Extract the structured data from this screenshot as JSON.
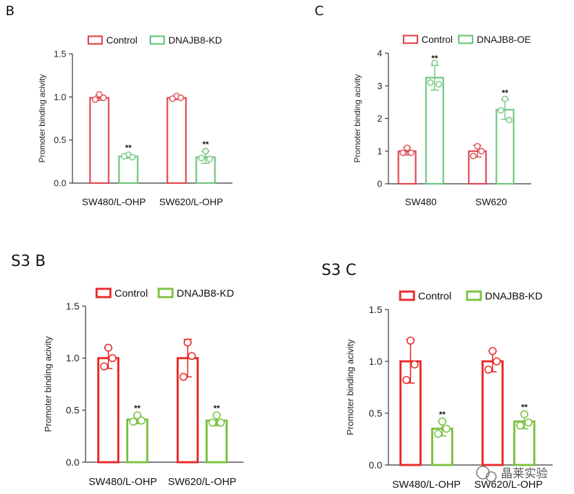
{
  "watermark": "晶莱实验",
  "chart_data": [
    {
      "panel": "B",
      "type": "bar",
      "ylabel": "Promoter binding acivity",
      "ylim": [
        0,
        1.5
      ],
      "yticks": [
        0.0,
        0.5,
        1.0,
        1.5
      ],
      "ytick_labels": [
        "0.0",
        "0.5",
        "1.0",
        "1.5"
      ],
      "categories": [
        "SW480/L-OHP",
        "SW620/L-OHP"
      ],
      "series": [
        {
          "name": "Control",
          "color": "#e0454f",
          "values": [
            0.99,
            0.99
          ],
          "errors": [
            0.03,
            0.02
          ],
          "points": [
            [
              1.03,
              0.97,
              0.99
            ],
            [
              1.01,
              0.98,
              0.99
            ]
          ],
          "stars": [
            "",
            ""
          ]
        },
        {
          "name": "DNAJB8-KD",
          "color": "#6cc47a",
          "values": [
            0.31,
            0.3
          ],
          "errors": [
            0.02,
            0.07
          ],
          "points": [
            [
              0.33,
              0.31,
              0.3
            ],
            [
              0.37,
              0.29,
              0.28
            ]
          ],
          "stars": [
            "**",
            "**"
          ]
        }
      ]
    },
    {
      "panel": "C",
      "type": "bar",
      "ylabel": "Promoter binding acivity",
      "ylim": [
        0,
        4
      ],
      "yticks": [
        0,
        1,
        2,
        3,
        4
      ],
      "ytick_labels": [
        "0",
        "1",
        "2",
        "3",
        "4"
      ],
      "categories": [
        "SW480",
        "SW620"
      ],
      "series": [
        {
          "name": "Control",
          "color": "#e0454f",
          "values": [
            1.0,
            1.0
          ],
          "errors": [
            0.12,
            0.18
          ],
          "points": [
            [
              1.1,
              0.95,
              0.95
            ],
            [
              1.15,
              0.85,
              1.0
            ]
          ],
          "stars": [
            "",
            ""
          ]
        },
        {
          "name": "DNAJB8-OE",
          "color": "#6cc47a",
          "values": [
            3.25,
            2.27
          ],
          "errors": [
            0.38,
            0.3
          ],
          "points": [
            [
              3.7,
              3.1,
              3.05
            ],
            [
              2.6,
              2.25,
              1.95
            ]
          ],
          "stars": [
            "**",
            "**"
          ]
        }
      ]
    },
    {
      "panel": "S3 B",
      "type": "bar",
      "ylabel": "Promoter binding acivity",
      "ylim": [
        0,
        1.5
      ],
      "yticks": [
        0.0,
        0.5,
        1.0,
        1.5
      ],
      "ytick_labels": [
        "0.0",
        "0.5",
        "1.0",
        "1.5"
      ],
      "categories": [
        "SW480/L-OHP",
        "SW620/L-OHP"
      ],
      "series": [
        {
          "name": "Control",
          "color": "#ea2a2a",
          "values": [
            1.0,
            1.0
          ],
          "errors": [
            0.1,
            0.18
          ],
          "points": [
            [
              1.1,
              0.92,
              1.0
            ],
            [
              1.15,
              0.82,
              1.02
            ]
          ],
          "stars": [
            "",
            ""
          ]
        },
        {
          "name": "DNAJB8-KD",
          "color": "#7cc242",
          "values": [
            0.41,
            0.4
          ],
          "errors": [
            0.04,
            0.05
          ],
          "points": [
            [
              0.45,
              0.39,
              0.4
            ],
            [
              0.45,
              0.38,
              0.38
            ]
          ],
          "stars": [
            "**",
            "**"
          ]
        }
      ]
    },
    {
      "panel": "S3  C",
      "type": "bar",
      "ylabel": "Promoter binding acivity",
      "ylim": [
        0,
        1.5
      ],
      "yticks": [
        0.0,
        0.5,
        1.0,
        1.5
      ],
      "ytick_labels": [
        "0.0",
        "0.5",
        "1.0",
        "1.5"
      ],
      "categories": [
        "SW480/L-OHP",
        "SW620/L-OHP"
      ],
      "series": [
        {
          "name": "Control",
          "color": "#ea2a2a",
          "values": [
            1.0,
            1.0
          ],
          "errors": [
            0.21,
            0.1
          ],
          "points": [
            [
              1.2,
              0.82,
              0.97
            ],
            [
              1.1,
              0.92,
              1.0
            ]
          ],
          "stars": [
            "",
            ""
          ]
        },
        {
          "name": "DNAJB8-KD",
          "color": "#7cc242",
          "values": [
            0.35,
            0.42
          ],
          "errors": [
            0.07,
            0.07
          ],
          "points": [
            [
              0.42,
              0.3,
              0.35
            ],
            [
              0.49,
              0.38,
              0.41
            ]
          ],
          "stars": [
            "**",
            "**"
          ]
        }
      ]
    }
  ]
}
